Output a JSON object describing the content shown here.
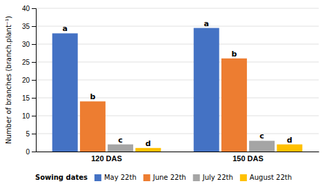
{
  "chart_data": {
    "type": "bar",
    "categories": [
      "120 DAS",
      "150 DAS"
    ],
    "series": [
      {
        "name": "May 22th",
        "color": "#4472C4",
        "values": [
          33,
          34.5
        ],
        "annotations": [
          "a",
          "a"
        ]
      },
      {
        "name": "June 22th",
        "color": "#ED7D31",
        "values": [
          14,
          26
        ],
        "annotations": [
          "b",
          "b"
        ]
      },
      {
        "name": "July 22th",
        "color": "#A5A5A5",
        "values": [
          2,
          3
        ],
        "annotations": [
          "c",
          "c"
        ]
      },
      {
        "name": "August 22th",
        "color": "#FFC000",
        "values": [
          1,
          2
        ],
        "annotations": [
          "d",
          "d"
        ]
      }
    ],
    "y_label": "Number of branches (branch.plant⁻¹)",
    "ylim": [
      0,
      40
    ],
    "yticks": [
      0,
      5,
      10,
      15,
      20,
      25,
      30,
      35,
      40
    ],
    "grid": true,
    "legend": "bottom",
    "legend_title": "Sowing dates"
  }
}
